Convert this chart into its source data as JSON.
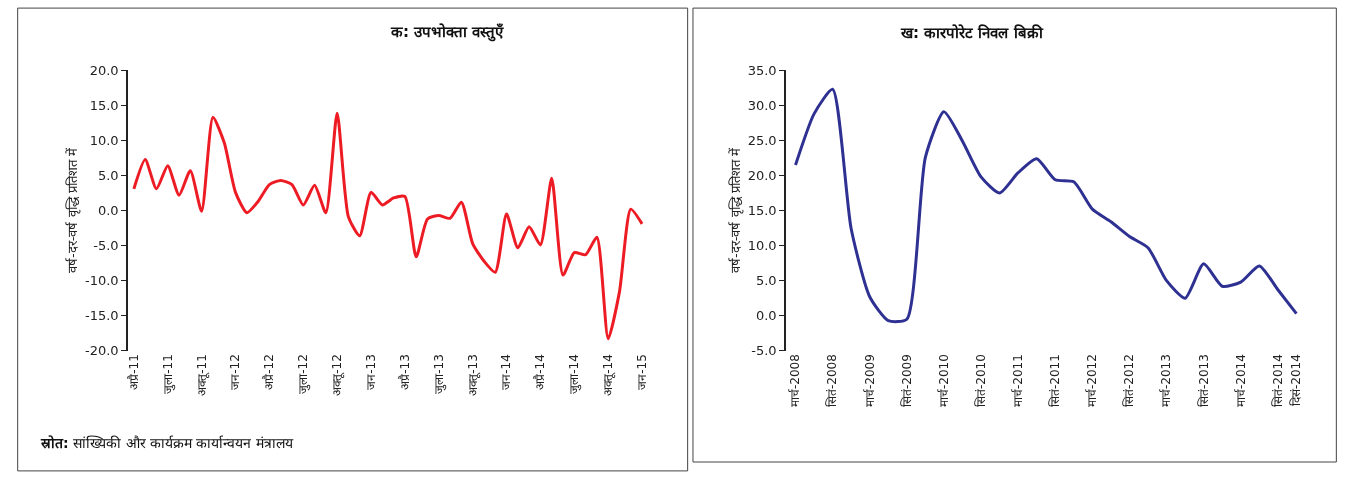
{
  "chart_data": [
    {
      "type": "line",
      "title": "क: उपभोक्ता वस्तुएँ",
      "ylabel": "वर्ष-दर-वर्ष वृद्धि प्रतिशत में",
      "categories": [
        "अप्रै-11",
        null,
        null,
        "जुला-11",
        null,
        null,
        "अक्तू-11",
        null,
        null,
        "जन-12",
        null,
        null,
        "अप्रै-12",
        null,
        null,
        "जुला-12",
        null,
        null,
        "अक्तू-12",
        null,
        null,
        "जन-13",
        null,
        null,
        "अप्रै-13",
        null,
        null,
        "जुला-13",
        null,
        null,
        "अक्तू-13",
        null,
        null,
        "जन-14",
        null,
        null,
        "अप्रै-14",
        null,
        null,
        "जुला-14",
        null,
        null,
        "अक्तू-14",
        null,
        null,
        "जन-15"
      ],
      "series": [
        {
          "color": "#ed1c24",
          "values": [
            3.1,
            7.3,
            3.1,
            6.4,
            2.2,
            5.7,
            -0.1,
            13.3,
            9.7,
            2.6,
            -0.3,
            1.3,
            3.7,
            4.3,
            3.7,
            0.8,
            3.6,
            -0.3,
            13.9,
            -0.9,
            -3.6,
            2.6,
            0.8,
            1.8,
            2.0,
            -6.6,
            -1.2,
            -0.7,
            -1.1,
            1.2,
            -4.7,
            -7.2,
            -8.8,
            -0.5,
            -5.3,
            -2.3,
            -4.9,
            4.6,
            -9.2,
            -6.0,
            -6.3,
            -3.8,
            -18.3,
            -11.6,
            0.2,
            -1.9
          ]
        }
      ],
      "ylim": [
        -20,
        20
      ],
      "yticks": [
        {
          "value": -20,
          "label": "-20.0"
        },
        {
          "value": -15,
          "label": "-15.0"
        },
        {
          "value": -10,
          "label": "-10.0"
        },
        {
          "value": -5,
          "label": "-5.0"
        },
        {
          "value": 0,
          "label": "0.0"
        },
        {
          "value": 5,
          "label": "5.0"
        },
        {
          "value": 10,
          "label": "10.0"
        },
        {
          "value": 15,
          "label": "15.0"
        },
        {
          "value": 20,
          "label": "20.0"
        }
      ],
      "marker": "none",
      "line_style": "solid",
      "annotations": [
        "स्रोत: सांख्यिकी और कार्यक्रम कार्यान्वयन मंत्रालय"
      ]
    },
    {
      "type": "line",
      "title": "ख: कारपोरेट निवल बिक्री",
      "ylabel": "वर्ष-दर-वर्ष वृद्धि प्रतिशत में",
      "categories": [
        "मार्च-2008",
        null,
        "सितं-2008",
        null,
        "मार्च-2009",
        null,
        "सितं-2009",
        null,
        "मार्च-2010",
        null,
        "सितं-2010",
        null,
        "मार्च-2011",
        null,
        "सितं-2011",
        null,
        "मार्च-2012",
        null,
        "सितं-2012",
        null,
        "मार्च-2013",
        null,
        "सितं-2013",
        null,
        "मार्च-2014",
        null,
        "सितं-2014",
        "दिसं-2014"
      ],
      "series": [
        {
          "color": "#2e3192",
          "values": [
            21.5,
            28.8,
            32.3,
            12.4,
            2.7,
            -0.7,
            -0.5,
            22.6,
            29.1,
            24.9,
            19.8,
            17.5,
            20.4,
            22.4,
            19.4,
            19.1,
            15.2,
            13.4,
            11.3,
            9.7,
            5.0,
            2.5,
            7.4,
            4.2,
            4.8,
            7.1,
            3.7,
            0.3
          ]
        }
      ],
      "ylim": [
        -5,
        35
      ],
      "yticks": [
        {
          "value": -5,
          "label": "-5.0"
        },
        {
          "value": 0,
          "label": "0.0"
        },
        {
          "value": 5,
          "label": "5.0"
        },
        {
          "value": 10,
          "label": "10.0"
        },
        {
          "value": 15,
          "label": "15.0"
        },
        {
          "value": 20,
          "label": "20.0"
        },
        {
          "value": 25,
          "label": "25.0"
        },
        {
          "value": 30,
          "label": "30.0"
        },
        {
          "value": 35,
          "label": "35.0"
        }
      ],
      "marker": "none",
      "line_style": "solid"
    }
  ]
}
